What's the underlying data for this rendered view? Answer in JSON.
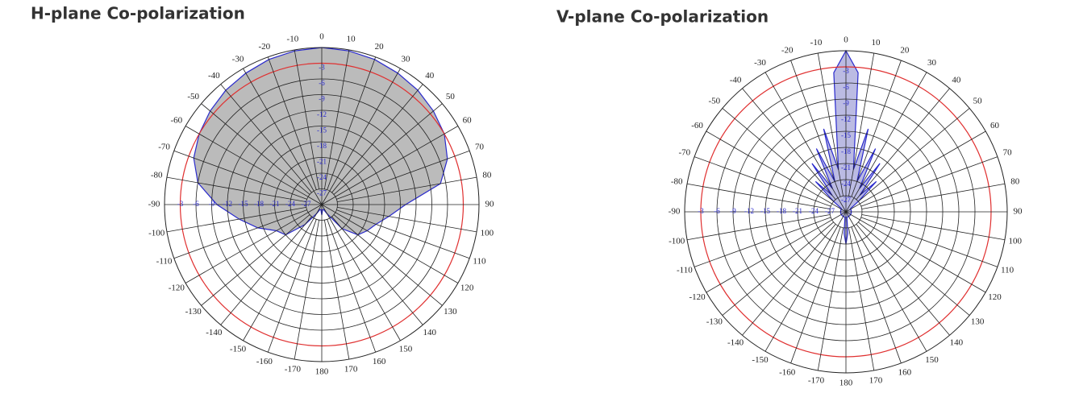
{
  "chart_data": [
    {
      "type": "polar",
      "title": "H-plane Co-polarization",
      "x": [
        -180,
        -170,
        -160,
        -150,
        -140,
        -130,
        -120,
        -110,
        -100,
        -90,
        -80,
        -70,
        -60,
        -50,
        -40,
        -30,
        -20,
        -10,
        0,
        10,
        20,
        30,
        40,
        50,
        60,
        70,
        80,
        90,
        100,
        110,
        120,
        130,
        140,
        150,
        160,
        170
      ],
      "series": [
        {
          "color": "#2a2acc",
          "fill": "#b4b4b4",
          "values": [
            -28,
            -29,
            -29,
            -28,
            -25,
            -21,
            -20,
            -17,
            -14,
            -10,
            -6,
            -4,
            -3,
            -2.2,
            -1.5,
            -1,
            -0.5,
            -0.2,
            0,
            -0.2,
            -0.5,
            -1,
            -1.5,
            -2.2,
            -3,
            -4.5,
            -7,
            -14,
            -17,
            -19,
            -20,
            -21,
            -24,
            -28,
            -29,
            -29
          ]
        }
      ],
      "ylim": [
        -30,
        0
      ],
      "yticks": [
        -3,
        -6,
        -9,
        -12,
        -15,
        -18,
        -21,
        -24,
        -27
      ],
      "xticks": [
        -170,
        -160,
        -150,
        -140,
        -130,
        -120,
        -110,
        -100,
        -90,
        -80,
        -70,
        -60,
        -50,
        -40,
        -30,
        -20,
        -10,
        0,
        10,
        20,
        30,
        40,
        50,
        60,
        70,
        80,
        90,
        100,
        110,
        120,
        130,
        140,
        150,
        160,
        170,
        180
      ],
      "reference_ring": -3,
      "reference_color": "#e03030",
      "grid_color": "#222"
    },
    {
      "type": "polar",
      "title": "V-plane Co-polarization",
      "x": [
        -180,
        -175,
        -170,
        -165,
        -160,
        -155,
        -150,
        -145,
        -140,
        -135,
        -130,
        -125,
        -120,
        -115,
        -110,
        -105,
        -100,
        -95,
        -90,
        -85,
        -80,
        -75,
        -70,
        -65,
        -60,
        -55,
        -50,
        -45,
        -40,
        -35,
        -30,
        -25,
        -20,
        -15,
        -10,
        -5,
        0,
        5,
        10,
        15,
        20,
        25,
        30,
        35,
        40,
        45,
        50,
        55,
        60,
        65,
        70,
        75,
        80,
        85,
        90,
        95,
        100,
        105,
        110,
        115,
        120,
        125,
        130,
        135,
        140,
        145,
        150,
        155,
        160,
        165,
        170,
        175
      ],
      "series": [
        {
          "color": "#2a2acc",
          "fill": "#b4b4e0",
          "values": [
            -24,
            -26,
            -29,
            -29,
            -29,
            -29,
            -29,
            -29,
            -29,
            -29,
            -29,
            -29,
            -29,
            -29,
            -29,
            -29,
            -29,
            -29,
            -29,
            -29,
            -29,
            -29,
            -29,
            -29,
            -29,
            -29,
            -27,
            -22,
            -26,
            -19,
            -25,
            -17,
            -24,
            -14,
            -22,
            -4,
            0,
            -4,
            -22,
            -14,
            -24,
            -17,
            -25,
            -19,
            -26,
            -22,
            -27,
            -29,
            -29,
            -29,
            -29,
            -29,
            -29,
            -29,
            -29,
            -29,
            -29,
            -29,
            -29,
            -29,
            -29,
            -29,
            -29,
            -29,
            -29,
            -29,
            -29,
            -29,
            -29,
            -29,
            -29,
            -26
          ]
        }
      ],
      "ylim": [
        -30,
        0
      ],
      "yticks": [
        -3,
        -6,
        -9,
        -12,
        -15,
        -18,
        -21,
        -24,
        -27
      ],
      "xticks": [
        -170,
        -160,
        -150,
        -140,
        -130,
        -120,
        -110,
        -100,
        -90,
        -80,
        -70,
        -60,
        -50,
        -40,
        -30,
        -20,
        -10,
        0,
        10,
        20,
        30,
        40,
        50,
        60,
        70,
        80,
        90,
        100,
        110,
        120,
        130,
        140,
        150,
        160,
        170,
        180
      ],
      "reference_ring": -3,
      "reference_color": "#e03030",
      "grid_color": "#222"
    }
  ]
}
